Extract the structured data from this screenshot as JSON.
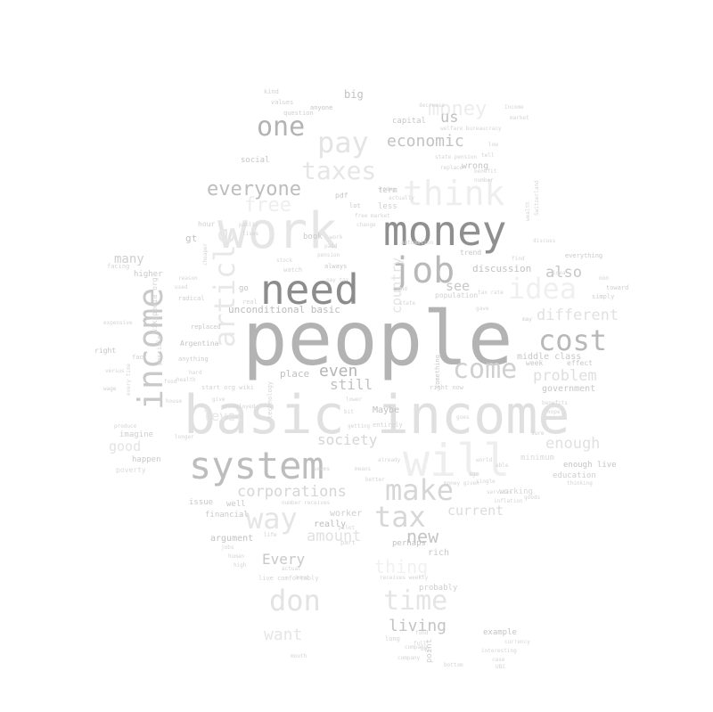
{
  "colors": {
    "background": "#ffffff"
  },
  "words": [
    {
      "text": "people",
      "color": "#b3b3b3",
      "emph": 10
    },
    {
      "text": "basic income",
      "color": "#e0e0e0",
      "emph": 9
    },
    {
      "text": "work",
      "color": "#e6e6e6",
      "emph": 8
    },
    {
      "text": "will",
      "color": "#eeeeee",
      "emph": 8
    },
    {
      "text": "money",
      "color": "#8f8f8f",
      "emph": 7
    },
    {
      "text": "need",
      "color": "#8c8c8c",
      "emph": 7
    },
    {
      "text": "system",
      "color": "#bdbdbd",
      "emph": 7
    },
    {
      "text": "income",
      "color": "#c9c9c9",
      "emph": 7
    },
    {
      "text": "article",
      "color": "#e8e8e8",
      "emph": 6
    },
    {
      "text": "think",
      "color": "#eeeeee",
      "emph": 6
    },
    {
      "text": "job",
      "color": "#b9b9b9",
      "emph": 6
    },
    {
      "text": "cost",
      "color": "#b8b8b8",
      "emph": 5
    },
    {
      "text": "pay",
      "color": "#e4e4e4",
      "emph": 5
    },
    {
      "text": "one",
      "color": "#b3b3b3",
      "emph": 5
    },
    {
      "text": "idea",
      "color": "#f0f0f0",
      "emph": 5
    },
    {
      "text": "make",
      "color": "#d6d6d6",
      "emph": 5
    },
    {
      "text": "tax",
      "color": "#d7d7d7",
      "emph": 5
    },
    {
      "text": "come",
      "color": "#d0d0d0",
      "emph": 5
    },
    {
      "text": "don",
      "color": "#e3e3e3",
      "emph": 5
    },
    {
      "text": "time",
      "color": "#e5e5e5",
      "emph": 5
    },
    {
      "text": "way",
      "color": "#e5e5e5",
      "emph": 5
    },
    {
      "text": "taxes",
      "color": "#e6e6e6",
      "emph": 4
    },
    {
      "text": "everyone",
      "color": "#bdbdbd",
      "emph": 4
    },
    {
      "text": "free",
      "color": "#eeeeee",
      "emph": 4
    },
    {
      "text": "money",
      "color": "#ededed",
      "emph": 4
    },
    {
      "text": "economic",
      "color": "#c2c2c2",
      "emph": 3
    },
    {
      "text": "corporations",
      "color": "#d6d6d6",
      "emph": 3
    },
    {
      "text": "amount",
      "color": "#e1e1e1",
      "emph": 3
    },
    {
      "text": "new",
      "color": "#c4c4c4",
      "emph": 3
    },
    {
      "text": "society",
      "color": "#d6d6d6",
      "emph": 3
    },
    {
      "text": "living",
      "color": "#c4c4c4",
      "emph": 3
    },
    {
      "text": "want",
      "color": "#e6e6e6",
      "emph": 3
    },
    {
      "text": "thing",
      "color": "#f1f1f1",
      "emph": 3
    },
    {
      "text": "Every",
      "color": "#c8c8c8",
      "emph": 3
    },
    {
      "text": "problem",
      "color": "#dfdfdf",
      "emph": 3
    },
    {
      "text": "different",
      "color": "#e1e1e1",
      "emph": 3
    },
    {
      "text": "enough",
      "color": "#e1e1e1",
      "emph": 3
    },
    {
      "text": "current",
      "color": "#dcdcdc",
      "emph": 3
    },
    {
      "text": "level",
      "color": "#e6e6e6",
      "emph": 3
    },
    {
      "text": "even",
      "color": "#b5b5b5",
      "emph": 3
    },
    {
      "text": "still",
      "color": "#c1c1c1",
      "emph": 3
    },
    {
      "text": "also",
      "color": "#c7c7c7",
      "emph": 3
    },
    {
      "text": "see",
      "color": "#c7c7c7",
      "emph": 3
    },
    {
      "text": "us",
      "color": "#c0c0c0",
      "emph": 3
    },
    {
      "text": "country",
      "color": "#e3e3e3",
      "emph": 3
    },
    {
      "text": "good",
      "color": "#e3e3e3",
      "emph": 3
    },
    {
      "text": "many",
      "color": "#cfcfcf",
      "emph": 3
    },
    {
      "text": "unconditional basic",
      "color": "#bcbcbc",
      "emph": 2
    },
    {
      "text": "discussion",
      "color": "#c2c2c2",
      "emph": 2
    },
    {
      "text": "government",
      "color": "#c7c7c7",
      "emph": 2
    },
    {
      "text": "middle class",
      "color": "#c7c7c7",
      "emph": 2
    },
    {
      "text": "place",
      "color": "#c0c0c0",
      "emph": 2
    },
    {
      "text": "Maybe",
      "color": "#c0c0c0",
      "emph": 2
    },
    {
      "text": "issue",
      "color": "#c9c9c9",
      "emph": 2
    },
    {
      "text": "well",
      "color": "#c9c9c9",
      "emph": 2
    },
    {
      "text": "financial",
      "color": "#c9c9c9",
      "emph": 2
    },
    {
      "text": "worker",
      "color": "#cfcfcf",
      "emph": 2
    },
    {
      "text": "really",
      "color": "#bdbdbd",
      "emph": 2
    },
    {
      "text": "argument",
      "color": "#c2c2c2",
      "emph": 2
    },
    {
      "text": "perhaps",
      "color": "#c2c2c2",
      "emph": 2
    },
    {
      "text": "rich",
      "color": "#c9c9c9",
      "emph": 2
    },
    {
      "text": "probably",
      "color": "#cfcfcf",
      "emph": 2
    },
    {
      "text": "example",
      "color": "#c4c4c4",
      "emph": 2
    },
    {
      "text": "education",
      "color": "#cfcfcf",
      "emph": 2
    },
    {
      "text": "enough live",
      "color": "#c4c4c4",
      "emph": 2
    },
    {
      "text": "minimum",
      "color": "#dadada",
      "emph": 2
    },
    {
      "text": "working",
      "color": "#d7d7d7",
      "emph": 2
    },
    {
      "text": "happen",
      "color": "#c9c9c9",
      "emph": 2
    },
    {
      "text": "poverty",
      "color": "#dadada",
      "emph": 2
    },
    {
      "text": "imagine",
      "color": "#cfcfcf",
      "emph": 2
    },
    {
      "text": "wrong",
      "color": "#c4c4c4",
      "emph": 2
    },
    {
      "text": "social",
      "color": "#c7c7c7",
      "emph": 2
    },
    {
      "text": "capital",
      "color": "#c7c7c7",
      "emph": 2
    },
    {
      "text": "big",
      "color": "#c0c0c0",
      "emph": 2
    },
    {
      "text": "term",
      "color": "#c4c4c4",
      "emph": 2
    },
    {
      "text": "book",
      "color": "#c9c9c9",
      "emph": 2
    },
    {
      "text": "gt",
      "color": "#c4c4c4",
      "emph": 2
    },
    {
      "text": "go",
      "color": "#c4c4c4",
      "emph": 2
    },
    {
      "text": "hour",
      "color": "#cfcfcf",
      "emph": 2
    },
    {
      "text": "Argentina",
      "color": "#c4c4c4",
      "emph": 1
    },
    {
      "text": "wikipedia org",
      "color": "#d2d2d2",
      "emph": 1
    },
    {
      "text": "always",
      "color": "#c7c7c7",
      "emph": 1
    },
    {
      "text": "lot",
      "color": "#c7c7c7",
      "emph": 1
    },
    {
      "text": "pdf",
      "color": "#c7c7c7",
      "emph": 1
    },
    {
      "text": "less",
      "color": "#cfcfcf",
      "emph": 1
    },
    {
      "text": "trend",
      "color": "#c7c7c7",
      "emph": 1
    },
    {
      "text": "population",
      "color": "#cfcfcf",
      "emph": 1
    },
    {
      "text": "week",
      "color": "#c7c7c7",
      "emph": 1
    },
    {
      "text": "effect",
      "color": "#c7c7c7",
      "emph": 1
    },
    {
      "text": "everything",
      "color": "#c9c9c9",
      "emph": 1
    },
    {
      "text": "simply",
      "color": "#cfcfcf",
      "emph": 1
    },
    {
      "text": "higher",
      "color": "#c9c9c9",
      "emph": 1
    },
    {
      "text": "radical",
      "color": "#cfcfcf",
      "emph": 1
    },
    {
      "text": "right",
      "color": "#c4c4c4",
      "emph": 1
    },
    {
      "text": "anything",
      "color": "#cfcfcf",
      "emph": 1
    },
    {
      "text": "start org wiki",
      "color": "#d2d2d2",
      "emph": 1
    },
    {
      "text": "something",
      "color": "#c9c9c9",
      "emph": 1
    },
    {
      "text": "right now",
      "color": "#cfcfcf",
      "emph": 1
    },
    {
      "text": "replaced",
      "color": "#c9c9c9",
      "emph": 1
    },
    {
      "text": "technology",
      "color": "#d4d4d4",
      "emph": 1
    },
    {
      "text": "anyone",
      "color": "#c4c4c4",
      "emph": 1
    },
    {
      "text": "question",
      "color": "#cfcfcf",
      "emph": 1
    },
    {
      "text": "values",
      "color": "#cfcfcf",
      "emph": 1
    },
    {
      "text": "kind",
      "color": "#d2d2d2",
      "emph": 1
    },
    {
      "text": "welfare bureaucracy",
      "color": "#d4d4d4",
      "emph": 1
    },
    {
      "text": "state pension",
      "color": "#d4d4d4",
      "emph": 1
    },
    {
      "text": "replace",
      "color": "#d2d2d2",
      "emph": 1
    },
    {
      "text": "discuss",
      "color": "#d4d4d4",
      "emph": 1
    },
    {
      "text": "toward",
      "color": "#cfcfcf",
      "emph": 1
    },
    {
      "text": "non",
      "color": "#cfcfcf",
      "emph": 1
    },
    {
      "text": "cheaper",
      "color": "#d4d4d4",
      "emph": 1
    },
    {
      "text": "facing",
      "color": "#d4d4d4",
      "emph": 1
    },
    {
      "text": "fact",
      "color": "#cfcfcf",
      "emph": 1
    },
    {
      "text": "wage",
      "color": "#cfcfcf",
      "emph": 1
    },
    {
      "text": "produce",
      "color": "#d2d2d2",
      "emph": 1
    },
    {
      "text": "sure",
      "color": "#cfcfcf",
      "emph": 1
    },
    {
      "text": "money given",
      "color": "#d4d4d4",
      "emph": 1
    },
    {
      "text": "number receives",
      "color": "#d4d4d4",
      "emph": 1
    },
    {
      "text": "life",
      "color": "#cfcfcf",
      "emph": 1
    },
    {
      "text": "live comfortably",
      "color": "#d4d4d4",
      "emph": 1
    },
    {
      "text": "receives weekly",
      "color": "#d4d4d4",
      "emph": 1
    },
    {
      "text": "wealth",
      "color": "#d4d4d4",
      "emph": 1
    },
    {
      "text": "company",
      "color": "#d4d4d4",
      "emph": 1
    },
    {
      "text": "thinking",
      "color": "#d4d4d4",
      "emph": 1
    },
    {
      "text": "today",
      "color": "#d4d4d4",
      "emph": 1
    },
    {
      "text": "actually",
      "color": "#d4d4d4",
      "emph": 1
    },
    {
      "text": "change",
      "color": "#d4d4d4",
      "emph": 1
    },
    {
      "text": "automation",
      "color": "#d4d4d4",
      "emph": 1
    },
    {
      "text": "better",
      "color": "#d4d4d4",
      "emph": 1
    },
    {
      "text": "already",
      "color": "#d4d4d4",
      "emph": 1
    },
    {
      "text": "means",
      "color": "#d4d4d4",
      "emph": 1
    },
    {
      "text": "point",
      "color": "#cfcfcf",
      "emph": 1
    },
    {
      "text": "may",
      "color": "#cfcfcf",
      "emph": 1
    },
    {
      "text": "find",
      "color": "#d4d4d4",
      "emph": 1
    },
    {
      "text": "number",
      "color": "#d4d4d4",
      "emph": 1
    },
    {
      "text": "benefit",
      "color": "#d4d4d4",
      "emph": 1
    },
    {
      "text": "decrease",
      "color": "#d4d4d4",
      "emph": 1
    },
    {
      "text": "gave",
      "color": "#d4d4d4",
      "emph": 1
    },
    {
      "text": "tax rate",
      "color": "#d4d4d4",
      "emph": 1
    },
    {
      "text": "expensive",
      "color": "#d4d4d4",
      "emph": 1
    },
    {
      "text": "possible",
      "color": "#d4d4d4",
      "emph": 1
    },
    {
      "text": "longer",
      "color": "#d4d4d4",
      "emph": 1
    },
    {
      "text": "watch",
      "color": "#d4d4d4",
      "emph": 1
    },
    {
      "text": "stock",
      "color": "#d4d4d4",
      "emph": 1
    },
    {
      "text": "Income",
      "color": "#d4d4d4",
      "emph": 1
    },
    {
      "text": "market",
      "color": "#d4d4d4",
      "emph": 1
    },
    {
      "text": "tell",
      "color": "#d4d4d4",
      "emph": 1
    },
    {
      "text": "low",
      "color": "#d4d4d4",
      "emph": 1
    },
    {
      "text": "versus",
      "color": "#d4d4d4",
      "emph": 1
    },
    {
      "text": "food",
      "color": "#d4d4d4",
      "emph": 1
    },
    {
      "text": "health",
      "color": "#d4d4d4",
      "emph": 1
    },
    {
      "text": "hard",
      "color": "#d4d4d4",
      "emph": 1
    },
    {
      "text": "house",
      "color": "#d4d4d4",
      "emph": 1
    },
    {
      "text": "long",
      "color": "#d4d4d4",
      "emph": 1
    },
    {
      "text": "buy",
      "color": "#d4d4d4",
      "emph": 1
    },
    {
      "text": "mouth",
      "color": "#d4d4d4",
      "emph": 1
    },
    {
      "text": "fund",
      "color": "#d4d4d4",
      "emph": 1
    },
    {
      "text": "pilot",
      "color": "#d4d4d4",
      "emph": 1
    },
    {
      "text": "entirely",
      "color": "#d4d4d4",
      "emph": 1
    },
    {
      "text": "goes",
      "color": "#d4d4d4",
      "emph": 1
    },
    {
      "text": "part",
      "color": "#d4d4d4",
      "emph": 1
    },
    {
      "text": "real",
      "color": "#d4d4d4",
      "emph": 1
    },
    {
      "text": "getting",
      "color": "#d4d4d4",
      "emph": 1
    },
    {
      "text": "bit",
      "color": "#d4d4d4",
      "emph": 1
    },
    {
      "text": "lower",
      "color": "#d4d4d4",
      "emph": 1
    },
    {
      "text": "full",
      "color": "#d4d4d4",
      "emph": 1
    },
    {
      "text": "bottom",
      "color": "#d4d4d4",
      "emph": 1
    },
    {
      "text": "world",
      "color": "#d4d4d4",
      "emph": 1
    },
    {
      "text": "able",
      "color": "#d4d4d4",
      "emph": 1
    },
    {
      "text": "every time",
      "color": "#d4d4d4",
      "emph": 1
    },
    {
      "text": "seems",
      "color": "#d4d4d4",
      "emph": 1
    },
    {
      "text": "idea",
      "color": "#d4d4d4",
      "emph": 1
    },
    {
      "text": "hope",
      "color": "#d4d4d4",
      "emph": 1
    },
    {
      "text": "benefits",
      "color": "#d4d4d4",
      "emph": 1
    },
    {
      "text": "work",
      "color": "#d4d4d4",
      "emph": 1
    },
    {
      "text": "paid",
      "color": "#d4d4d4",
      "emph": 1
    },
    {
      "text": "pension",
      "color": "#d4d4d4",
      "emph": 1
    },
    {
      "text": "public",
      "color": "#d4d4d4",
      "emph": 1
    },
    {
      "text": "lives",
      "color": "#d4d4d4",
      "emph": 1
    },
    {
      "text": "reason",
      "color": "#d4d4d4",
      "emph": 1
    },
    {
      "text": "used",
      "color": "#d4d4d4",
      "emph": 1
    },
    {
      "text": "state",
      "color": "#d4d4d4",
      "emph": 1
    },
    {
      "text": "end",
      "color": "#d4d4d4",
      "emph": 1
    },
    {
      "text": "free market",
      "color": "#d4d4d4",
      "emph": 1
    },
    {
      "text": "give",
      "color": "#d4d4d4",
      "emph": 1
    },
    {
      "text": "unemployed",
      "color": "#d4d4d4",
      "emph": 1
    },
    {
      "text": "interesting",
      "color": "#d4d4d4",
      "emph": 1
    },
    {
      "text": "case",
      "color": "#d4d4d4",
      "emph": 1
    },
    {
      "text": "UBI",
      "color": "#d4d4d4",
      "emph": 1
    },
    {
      "text": "currency",
      "color": "#d4d4d4",
      "emph": 1
    },
    {
      "text": "pay tax",
      "color": "#d4d4d4",
      "emph": 1
    },
    {
      "text": "company",
      "color": "#d4d4d4",
      "emph": 1
    },
    {
      "text": "goods",
      "color": "#d4d4d4",
      "emph": 1
    },
    {
      "text": "Switzerland",
      "color": "#d4d4d4",
      "emph": 1
    },
    {
      "text": "single",
      "color": "#d4d4d4",
      "emph": 1
    },
    {
      "text": "ago",
      "color": "#d4d4d4",
      "emph": 1
    },
    {
      "text": "services",
      "color": "#d4d4d4",
      "emph": 1
    },
    {
      "text": "inflation",
      "color": "#d4d4d4",
      "emph": 1
    },
    {
      "text": "jobs",
      "color": "#d4d4d4",
      "emph": 1
    },
    {
      "text": "human",
      "color": "#d4d4d4",
      "emph": 1
    },
    {
      "text": "high",
      "color": "#d4d4d4",
      "emph": 1
    },
    {
      "text": "actual",
      "color": "#d4d4d4",
      "emph": 1
    },
    {
      "text": "hand",
      "color": "#d4d4d4",
      "emph": 1
    }
  ]
}
